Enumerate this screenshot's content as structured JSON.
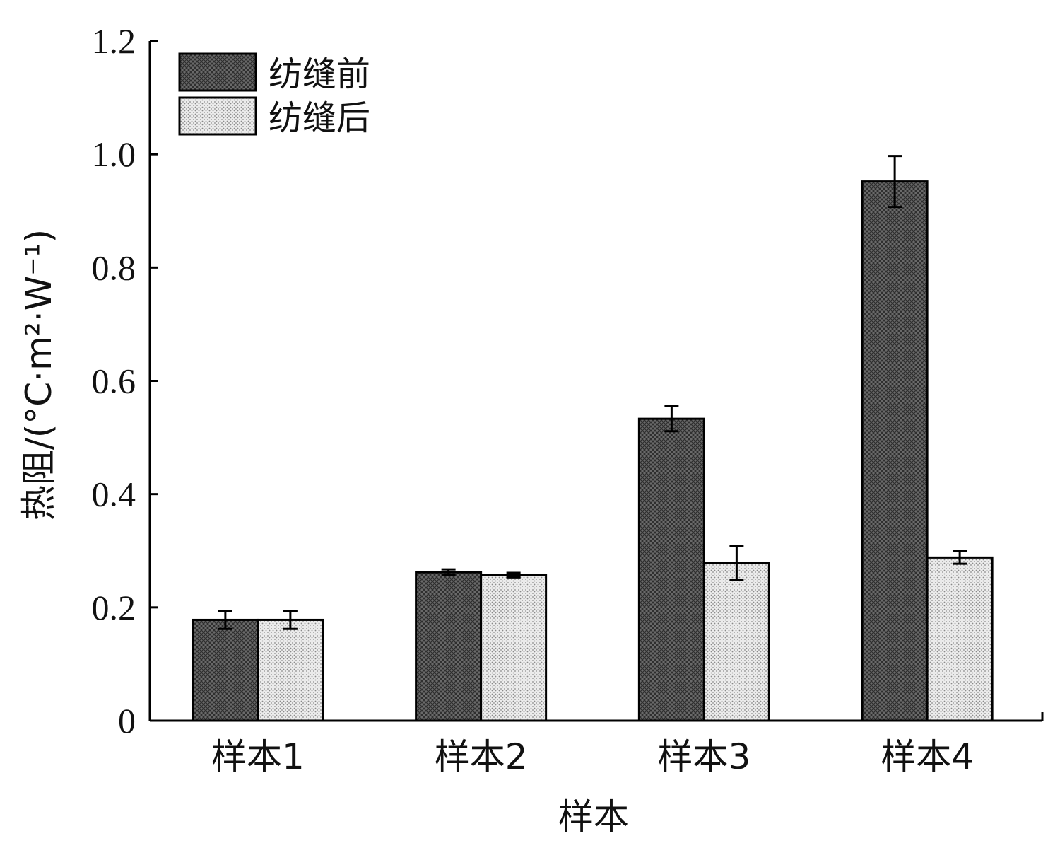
{
  "chart_data": {
    "type": "bar",
    "categories": [
      "样本1",
      "样本2",
      "样本3",
      "样本4"
    ],
    "series": [
      {
        "name": "纺缝前",
        "values": [
          0.178,
          0.262,
          0.533,
          0.952
        ],
        "errors": [
          0.016,
          0.005,
          0.022,
          0.045
        ],
        "pattern": "dark-crosshatch",
        "color": "#555555"
      },
      {
        "name": "纺缝后",
        "values": [
          0.178,
          0.257,
          0.279,
          0.288
        ],
        "errors": [
          0.016,
          0.004,
          0.03,
          0.011
        ],
        "pattern": "light-dots",
        "color": "#d8d8d8"
      }
    ],
    "xlabel": "样本",
    "ylabel": "热阻/(°C·m²·W⁻¹)",
    "ylim": [
      0,
      1.2
    ],
    "yticks": [
      "0",
      "0.2",
      "0.4",
      "0.6",
      "0.8",
      "1.0",
      "1.2"
    ],
    "ytick_values": [
      0,
      0.2,
      0.4,
      0.6,
      0.8,
      1.0,
      1.2
    ],
    "grid": false,
    "legend_position": "top-left"
  }
}
